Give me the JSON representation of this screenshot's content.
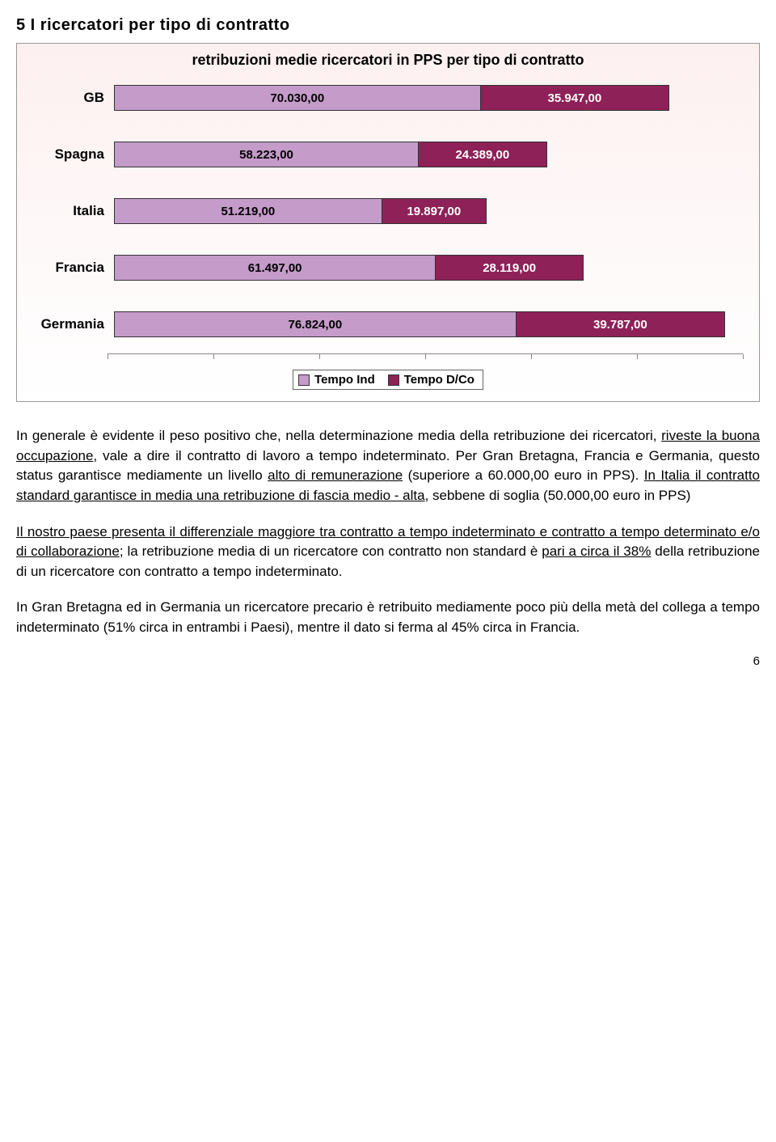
{
  "section_title": "5 I ricercatori per tipo di contratto",
  "chart": {
    "type": "stacked-horizontal-bar",
    "title": "retribuzioni medie ricercatori in PPS per tipo di contratto",
    "background_gradient_top": "#fdf0f0",
    "background_gradient_bottom": "#ffffff",
    "series": [
      {
        "name": "Tempo Ind",
        "color": "#c49bc9"
      },
      {
        "name": "Tempo D/Co",
        "color": "#8e2157"
      }
    ],
    "max_value": 120,
    "categories": [
      {
        "label": "GB",
        "values": [
          70.03,
          35.947
        ],
        "value_labels": [
          "70.030,00",
          "35.947,00"
        ]
      },
      {
        "label": "Spagna",
        "values": [
          58.223,
          24.389
        ],
        "value_labels": [
          "58.223,00",
          "24.389,00"
        ]
      },
      {
        "label": "Italia",
        "values": [
          51.219,
          19.897
        ],
        "value_labels": [
          "51.219,00",
          "19.897,00"
        ]
      },
      {
        "label": "Francia",
        "values": [
          61.497,
          28.119
        ],
        "value_labels": [
          "61.497,00",
          "28.119,00"
        ]
      },
      {
        "label": "Germania",
        "values": [
          76.824,
          39.787
        ],
        "value_labels": [
          "76.824,00",
          "39.787,00"
        ]
      }
    ],
    "axis_ticks": [
      0,
      20,
      40,
      60,
      80,
      100,
      120
    ],
    "value_label_fontsize": 15,
    "category_label_fontsize": 17,
    "title_fontsize": 18,
    "bar_border_color": "#333333"
  },
  "paragraphs": {
    "p1_a": "In generale è evidente il peso positivo che, nella determinazione media della retribuzione dei ricercatori, ",
    "p1_u1": "riveste la buona occupazione",
    "p1_b": ", vale a dire il contratto di lavoro a tempo indeterminato. Per Gran Bretagna, Francia e Germania, questo status garantisce mediamente un livello ",
    "p1_u2": "alto di remunerazione",
    "p1_c": " (superiore a 60.000,00 euro in PPS). ",
    "p1_u3": "In Italia il contratto standard garantisce in media una retribuzione di fascia medio - alta",
    "p1_d": ", sebbene di soglia (50.000,00 euro in PPS)",
    "p2_u1": "Il nostro paese presenta il differenziale maggiore tra contratto a tempo indeterminato e contratto a tempo determinato e/o di collaborazione",
    "p2_a": "; la retribuzione media di un ricercatore con contratto non standard è ",
    "p2_u2": "pari a circa il 38%",
    "p2_b": " della retribuzione di un ricercatore con contratto a tempo indeterminato.",
    "p3": "In Gran Bretagna ed in Germania un ricercatore precario è retribuito mediamente poco più della metà del collega a tempo indeterminato (51% circa in entrambi i Paesi), mentre il dato si ferma al 45% circa in Francia."
  },
  "page_number": "6"
}
